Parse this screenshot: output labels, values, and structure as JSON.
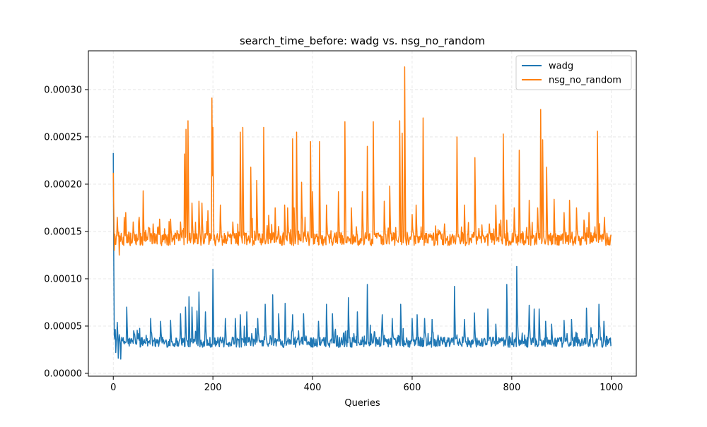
{
  "chart_data": {
    "type": "line",
    "title": "search_time_before: wadg vs. nsg_no_random",
    "xlabel": "Queries",
    "ylabel": "",
    "xlim": [
      -50,
      1050
    ],
    "ylim": [
      -3e-06,
      0.000341
    ],
    "xticks": [
      0,
      200,
      400,
      600,
      800,
      1000
    ],
    "xtick_labels": [
      "0",
      "200",
      "400",
      "600",
      "800",
      "1000"
    ],
    "yticks": [
      0,
      5e-05,
      0.0001,
      0.00015,
      0.0002,
      0.00025,
      0.0003
    ],
    "ytick_labels": [
      "0.00000",
      "0.00005",
      "0.00010",
      "0.00015",
      "0.00020",
      "0.00025",
      "0.00030"
    ],
    "grid": true,
    "legend_position": "top-right",
    "n_points": 1000,
    "series": [
      {
        "name": "wadg",
        "color": "#1f77b4",
        "base_level": 3.3e-05,
        "noise": 5.5e-06,
        "spikes": [
          [
            0,
            0.000233
          ],
          [
            1,
            0.00012
          ],
          [
            2,
            4e-05
          ],
          [
            5,
            2.2e-05
          ],
          [
            8,
            5.4e-05
          ],
          [
            10,
            1.6e-05
          ],
          [
            15,
            1.5e-05
          ],
          [
            27,
            7e-05
          ],
          [
            50,
            4.2e-05
          ],
          [
            75,
            5.8e-05
          ],
          [
            95,
            5.5e-05
          ],
          [
            115,
            5.6e-05
          ],
          [
            135,
            6.3e-05
          ],
          [
            145,
            7e-05
          ],
          [
            152,
            8.1e-05
          ],
          [
            158,
            7e-05
          ],
          [
            168,
            6.6e-05
          ],
          [
            172,
            8.6e-05
          ],
          [
            185,
            6.5e-05
          ],
          [
            200,
            0.00011
          ],
          [
            225,
            5.8e-05
          ],
          [
            245,
            5.8e-05
          ],
          [
            255,
            6.2e-05
          ],
          [
            268,
            6.5e-05
          ],
          [
            290,
            5.8e-05
          ],
          [
            305,
            7.3e-05
          ],
          [
            320,
            8.3e-05
          ],
          [
            332,
            6.3e-05
          ],
          [
            345,
            7.4e-05
          ],
          [
            360,
            6.2e-05
          ],
          [
            382,
            6.3e-05
          ],
          [
            412,
            5.5e-05
          ],
          [
            428,
            7.3e-05
          ],
          [
            440,
            6.3e-05
          ],
          [
            472,
            8e-05
          ],
          [
            490,
            6.5e-05
          ],
          [
            510,
            9.4e-05
          ],
          [
            540,
            6.2e-05
          ],
          [
            560,
            5.8e-05
          ],
          [
            577,
            7.3e-05
          ],
          [
            600,
            5.8e-05
          ],
          [
            610,
            6.2e-05
          ],
          [
            625,
            5.8e-05
          ],
          [
            640,
            5.7e-05
          ],
          [
            685,
            9.2e-05
          ],
          [
            705,
            5.7e-05
          ],
          [
            725,
            6.4e-05
          ],
          [
            752,
            6.8e-05
          ],
          [
            768,
            5.2e-05
          ],
          [
            790,
            9.4e-05
          ],
          [
            810,
            0.000113
          ],
          [
            835,
            7.2e-05
          ],
          [
            845,
            6.8e-05
          ],
          [
            855,
            6.8e-05
          ],
          [
            868,
            5.5e-05
          ],
          [
            880,
            5.2e-05
          ],
          [
            905,
            5.6e-05
          ],
          [
            920,
            5.7e-05
          ],
          [
            950,
            6.9e-05
          ],
          [
            975,
            7.3e-05
          ],
          [
            985,
            5.5e-05
          ]
        ]
      },
      {
        "name": "nsg_no_random",
        "color": "#ff7f0e",
        "base_level": 0.000142,
        "noise": 7e-06,
        "spikes": [
          [
            0,
            0.000212
          ],
          [
            2,
            0.00013
          ],
          [
            8,
            0.000165
          ],
          [
            12,
            0.000125
          ],
          [
            22,
            0.000165
          ],
          [
            25,
            0.00017
          ],
          [
            40,
            0.00016
          ],
          [
            52,
            0.000165
          ],
          [
            60,
            0.000193
          ],
          [
            80,
            0.000158
          ],
          [
            93,
            0.000163
          ],
          [
            115,
            0.000163
          ],
          [
            135,
            0.00016
          ],
          [
            143,
            0.000232
          ],
          [
            146,
            0.000258
          ],
          [
            150,
            0.000267
          ],
          [
            158,
            0.00018
          ],
          [
            172,
            0.000182
          ],
          [
            178,
            0.00018
          ],
          [
            190,
            0.000172
          ],
          [
            198,
            0.000291
          ],
          [
            200,
            0.00026
          ],
          [
            215,
            0.000178
          ],
          [
            240,
            0.00016
          ],
          [
            255,
            0.000255
          ],
          [
            260,
            0.00026
          ],
          [
            276,
            0.000218
          ],
          [
            288,
            0.000204
          ],
          [
            302,
            0.00026
          ],
          [
            312,
            0.000167
          ],
          [
            325,
            0.000175
          ],
          [
            344,
            0.000178
          ],
          [
            350,
            0.000175
          ],
          [
            360,
            0.000248
          ],
          [
            363,
            0.000175
          ],
          [
            368,
            0.000255
          ],
          [
            378,
            0.000202
          ],
          [
            396,
            0.000245
          ],
          [
            400,
            0.000192
          ],
          [
            414,
            0.000245
          ],
          [
            428,
            0.000178
          ],
          [
            452,
            0.000192
          ],
          [
            465,
            0.000266
          ],
          [
            478,
            0.000175
          ],
          [
            488,
            0.000155
          ],
          [
            500,
            0.000192
          ],
          [
            510,
            0.00024
          ],
          [
            522,
            0.000266
          ],
          [
            544,
            0.000182
          ],
          [
            555,
            0.000198
          ],
          [
            575,
            0.000267
          ],
          [
            580,
            0.000254
          ],
          [
            585,
            0.000324
          ],
          [
            600,
            0.000168
          ],
          [
            608,
            0.000178
          ],
          [
            622,
            0.00027
          ],
          [
            652,
            0.000152
          ],
          [
            665,
            0.000158
          ],
          [
            690,
            0.00025
          ],
          [
            705,
            0.000178
          ],
          [
            726,
            0.000228
          ],
          [
            740,
            0.000157
          ],
          [
            755,
            0.000158
          ],
          [
            768,
            0.000178
          ],
          [
            775,
            0.000158
          ],
          [
            783,
            0.000253
          ],
          [
            805,
            0.000175
          ],
          [
            815,
            0.000236
          ],
          [
            835,
            0.000183
          ],
          [
            852,
            0.000175
          ],
          [
            858,
            0.000279
          ],
          [
            862,
            0.000247
          ],
          [
            870,
            0.000218
          ],
          [
            885,
            0.000184
          ],
          [
            905,
            0.00017
          ],
          [
            916,
            0.000183
          ],
          [
            930,
            0.000175
          ],
          [
            945,
            0.000162
          ],
          [
            955,
            0.00017
          ],
          [
            972,
            0.000256
          ],
          [
            986,
            0.000165
          ]
        ]
      }
    ]
  }
}
